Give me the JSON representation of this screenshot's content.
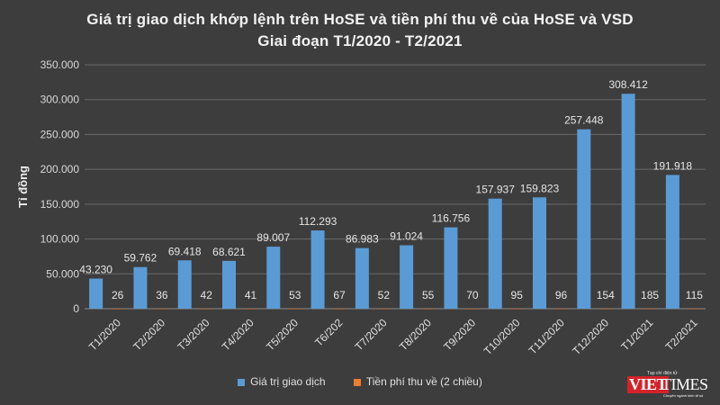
{
  "chart_data": {
    "type": "bar",
    "title_line1": "Giá trị giao dịch khớp lệnh trên HoSE và tiền phí thu về của HoSE và VSD",
    "title_line2": "Giai đoạn T1/2020 - T2/2021",
    "ylabel": "Tỉ đồng",
    "xlabel": "",
    "ylim": [
      0,
      350000
    ],
    "yticks": [
      0,
      50000,
      100000,
      150000,
      200000,
      250000,
      300000,
      350000
    ],
    "ytick_labels": [
      "0",
      "50.000",
      "100.000",
      "150.000",
      "200.000",
      "250.000",
      "300.000",
      "350.000"
    ],
    "grid": true,
    "legend_position": "bottom",
    "categories": [
      "T1/2020",
      "T2/2020",
      "T3/2020",
      "T4/2020",
      "T5/2020",
      "T6/202",
      "T7/2020",
      "T8/2020",
      "T9/2020",
      "T10/2020",
      "T11/2020",
      "T12/2020",
      "T1/2021",
      "T2/2021"
    ],
    "series": [
      {
        "name": "Giá trị giao dịch",
        "color": "#5b9bd5",
        "values": [
          43230,
          59762,
          69418,
          68621,
          89007,
          112293,
          86983,
          91024,
          116756,
          157937,
          159823,
          257448,
          308412,
          191918
        ],
        "labels": [
          "43.230",
          "59.762",
          "69.418",
          "68.621",
          "89.007",
          "112.293",
          "86.983",
          "91.024",
          "116.756",
          "157.937",
          "159.823",
          "257.448",
          "308.412",
          "191.918"
        ]
      },
      {
        "name": "Tiền phí thu về (2 chiều)",
        "color": "#ed7d31",
        "values": [
          26,
          36,
          42,
          41,
          53,
          67,
          52,
          55,
          70,
          95,
          96,
          154,
          185,
          115
        ],
        "labels": [
          "26",
          "36",
          "42",
          "41",
          "53",
          "67",
          "52",
          "55",
          "70",
          "95",
          "96",
          "154",
          "185",
          "115"
        ]
      }
    ]
  },
  "logo": {
    "viet": "VIET",
    "times": "TIMES",
    "tagline_top": "Tạp chí điện tử",
    "tagline_bottom": "Chuyên ngành kinh tế số"
  }
}
